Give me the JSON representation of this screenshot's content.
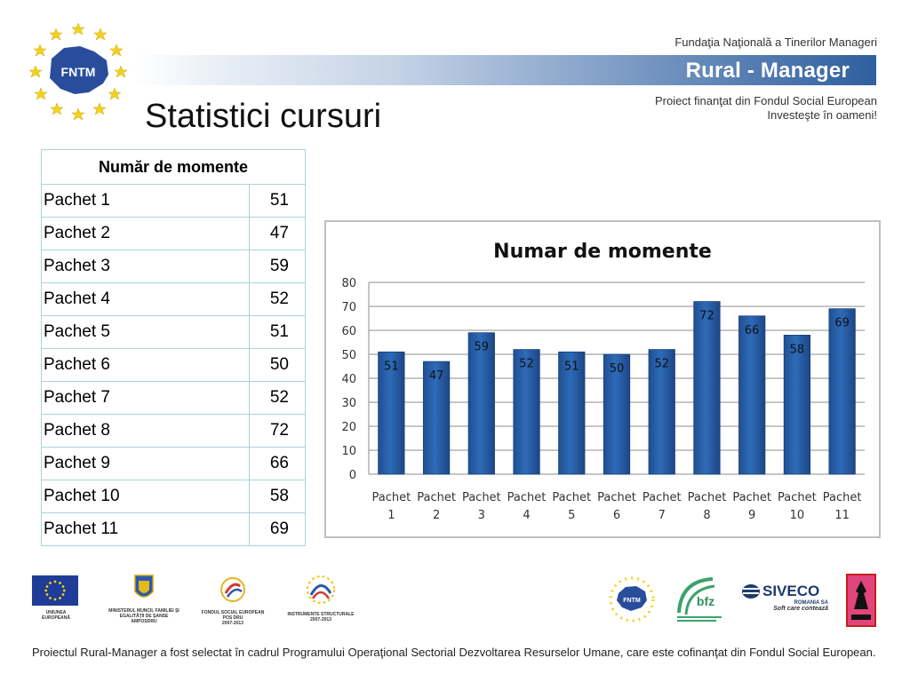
{
  "header": {
    "logo_text": "FNTM",
    "foundation": "Fundaţia Naţională a Tinerilor Manageri",
    "brand": "Rural - Manager",
    "project_line1": "Proiect finanţat din Fondul Social European",
    "project_line2": "Investeşte în oameni!"
  },
  "title": "Statistici cursuri",
  "table": {
    "header": "Număr de momente",
    "rows": [
      {
        "label": "Pachet 1",
        "value": "51"
      },
      {
        "label": "Pachet 2",
        "value": "47"
      },
      {
        "label": "Pachet 3",
        "value": "59"
      },
      {
        "label": "Pachet 4",
        "value": "52"
      },
      {
        "label": "Pachet 5",
        "value": "51"
      },
      {
        "label": "Pachet 6",
        "value": "50"
      },
      {
        "label": "Pachet 7",
        "value": "52"
      },
      {
        "label": "Pachet 8",
        "value": "72"
      },
      {
        "label": "Pachet 9",
        "value": "66"
      },
      {
        "label": "Pachet 10",
        "value": "58"
      },
      {
        "label": "Pachet 11",
        "value": "69"
      }
    ]
  },
  "chart_data": {
    "type": "bar",
    "title": "Numar de momente",
    "categories": [
      "Pachet 1",
      "Pachet 2",
      "Pachet 3",
      "Pachet 4",
      "Pachet 5",
      "Pachet 6",
      "Pachet 7",
      "Pachet 8",
      "Pachet 9",
      "Pachet 10",
      "Pachet 11"
    ],
    "category_lines": [
      [
        "Pachet",
        "1"
      ],
      [
        "Pachet",
        "2"
      ],
      [
        "Pachet",
        "3"
      ],
      [
        "Pachet",
        "4"
      ],
      [
        "Pachet",
        "5"
      ],
      [
        "Pachet",
        "6"
      ],
      [
        "Pachet",
        "7"
      ],
      [
        "Pachet",
        "8"
      ],
      [
        "Pachet",
        "9"
      ],
      [
        "Pachet",
        "10"
      ],
      [
        "Pachet",
        "11"
      ]
    ],
    "values": [
      51,
      47,
      59,
      52,
      51,
      50,
      52,
      72,
      66,
      58,
      69
    ],
    "ylim": [
      0,
      80
    ],
    "yticks": [
      0,
      10,
      20,
      30,
      40,
      50,
      60,
      70,
      80
    ],
    "grid": true,
    "legend": "none",
    "bar_color": "#2e6bb8"
  },
  "footer": {
    "logos": [
      {
        "caption": "UNIUNEA EUROPEANĂ"
      },
      {
        "caption_lines": [
          "MINISTERUL MUNCII, FAMILIEI ŞI",
          "EGALITĂŢII DE ŞANSE",
          "AMPOSDRU"
        ]
      },
      {
        "caption_lines": [
          "FONDUL SOCIAL EUROPEAN",
          "POS DRU",
          "2007-2013"
        ]
      },
      {
        "caption_lines": [
          "INSTRUMENTE STRUCTURALE",
          "2007-2013"
        ]
      },
      {
        "caption": "FNTM"
      },
      {
        "caption": "bfz"
      },
      {
        "name": "SIVECO",
        "sub": "ROMANIA SA",
        "tagline": "Soft care contează"
      }
    ],
    "note": "Proiectul Rural-Manager a fost selectat în cadrul Programului Operaţional Sectorial Dezvoltarea Resurselor Umane, care este cofinanţat din Fondul Social European."
  }
}
